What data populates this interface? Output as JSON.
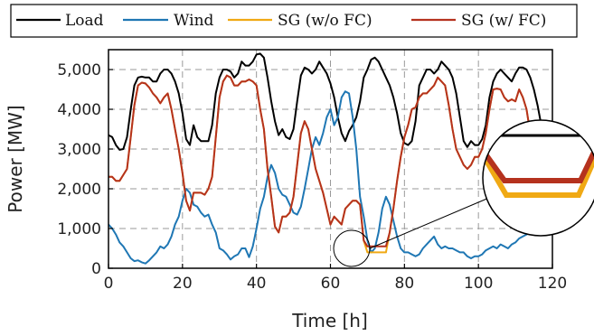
{
  "chart_data": {
    "type": "line",
    "xlabel": "Time [h]",
    "ylabel": "Power [MW]",
    "xlim": [
      0,
      120
    ],
    "ylim": [
      0,
      5500
    ],
    "xticks": [
      0,
      20,
      40,
      60,
      80,
      100,
      120
    ],
    "xtick_labels": [
      "0",
      "20",
      "40",
      "60",
      "80",
      "100",
      "120"
    ],
    "yticks": [
      0,
      1000,
      2000,
      3000,
      4000,
      5000
    ],
    "ytick_labels": [
      "0",
      "1,000",
      "2,000",
      "3,000",
      "4,000",
      "5,000"
    ],
    "grid": true,
    "legend_position": "top",
    "series": [
      {
        "name": "Load",
        "color": "#000000",
        "x": [
          0,
          1,
          2,
          3,
          4,
          5,
          6,
          7,
          8,
          9,
          10,
          11,
          12,
          13,
          14,
          15,
          16,
          17,
          18,
          19,
          20,
          21,
          22,
          23,
          24,
          25,
          26,
          27,
          28,
          29,
          30,
          31,
          32,
          33,
          34,
          35,
          36,
          37,
          38,
          39,
          40,
          41,
          42,
          43,
          44,
          45,
          46,
          47,
          48,
          49,
          50,
          51,
          52,
          53,
          54,
          55,
          56,
          57,
          58,
          59,
          60,
          61,
          62,
          63,
          64,
          65,
          66,
          67,
          68,
          69,
          70,
          71,
          72,
          73,
          74,
          75,
          76,
          77,
          78,
          79,
          80,
          81,
          82,
          83,
          84,
          85,
          86,
          87,
          88,
          89,
          90,
          91,
          92,
          93,
          94,
          95,
          96,
          97,
          98,
          99,
          100,
          101,
          102,
          103,
          104,
          105,
          106,
          107,
          108,
          109,
          110,
          111,
          112,
          113,
          114,
          115,
          116,
          117,
          118,
          119
        ],
        "values": [
          3350,
          3300,
          3100,
          2980,
          3000,
          3300,
          4000,
          4600,
          4800,
          4820,
          4800,
          4800,
          4700,
          4700,
          4900,
          5000,
          5000,
          4900,
          4700,
          4400,
          3900,
          3250,
          3100,
          3600,
          3300,
          3200,
          3200,
          3200,
          3600,
          4400,
          4800,
          5000,
          5000,
          4950,
          4800,
          4900,
          5200,
          5100,
          5100,
          5200,
          5380,
          5400,
          5300,
          4800,
          4200,
          3700,
          3350,
          3500,
          3300,
          3250,
          3500,
          4200,
          4850,
          5050,
          5000,
          4900,
          5000,
          5200,
          5050,
          4900,
          4650,
          4300,
          3800,
          3400,
          3200,
          3450,
          3600,
          3800,
          4200,
          4800,
          5000,
          5250,
          5300,
          5200,
          5000,
          4800,
          4600,
          4300,
          3900,
          3400,
          3150,
          3100,
          3200,
          3700,
          4600,
          4800,
          5000,
          5000,
          4900,
          5000,
          5200,
          5100,
          5000,
          4800,
          4400,
          3800,
          3200,
          3050,
          3200,
          3100,
          3100,
          3250,
          3600,
          4300,
          4700,
          4900,
          5000,
          4900,
          4800,
          4700,
          4900,
          5050,
          5050,
          5000,
          4800,
          4500,
          4100,
          3600,
          3200,
          3100
        ]
      },
      {
        "name": "Wind",
        "color": "#1f77b4",
        "x": [
          0,
          1,
          2,
          3,
          4,
          5,
          6,
          7,
          8,
          9,
          10,
          11,
          12,
          13,
          14,
          15,
          16,
          17,
          18,
          19,
          20,
          21,
          22,
          23,
          24,
          25,
          26,
          27,
          28,
          29,
          30,
          31,
          32,
          33,
          34,
          35,
          36,
          37,
          38,
          39,
          40,
          41,
          42,
          43,
          44,
          45,
          46,
          47,
          48,
          49,
          50,
          51,
          52,
          53,
          54,
          55,
          56,
          57,
          58,
          59,
          60,
          61,
          62,
          63,
          64,
          65,
          66,
          67,
          68,
          69,
          70,
          71,
          72,
          73,
          74,
          75,
          76,
          77,
          78,
          79,
          80,
          81,
          82,
          83,
          84,
          85,
          86,
          87,
          88,
          89,
          90,
          91,
          92,
          93,
          94,
          95,
          96,
          97,
          98,
          99,
          100,
          101,
          102,
          103,
          104,
          105,
          106,
          107,
          108,
          109,
          110,
          111,
          112,
          113,
          114,
          115,
          116,
          117,
          118,
          119
        ],
        "values": [
          1100,
          1000,
          850,
          650,
          550,
          400,
          250,
          180,
          200,
          150,
          120,
          200,
          300,
          400,
          550,
          500,
          600,
          800,
          1100,
          1300,
          1700,
          2000,
          1900,
          1600,
          1550,
          1400,
          1300,
          1350,
          1100,
          900,
          500,
          450,
          350,
          220,
          300,
          350,
          500,
          500,
          280,
          550,
          1000,
          1500,
          1800,
          2300,
          2600,
          2400,
          2000,
          1850,
          1800,
          1600,
          1400,
          1350,
          1550,
          2000,
          2500,
          3000,
          3300,
          3100,
          3400,
          3800,
          4000,
          3600,
          3800,
          4300,
          4450,
          4400,
          3800,
          3000,
          1800,
          1300,
          700,
          400,
          500,
          900,
          1500,
          1800,
          1600,
          1200,
          800,
          500,
          400,
          400,
          350,
          300,
          350,
          500,
          600,
          700,
          800,
          600,
          500,
          550,
          500,
          500,
          450,
          400,
          400,
          300,
          250,
          300,
          300,
          350,
          450,
          500,
          550,
          500,
          600,
          550,
          500,
          600,
          650,
          750,
          800,
          850,
          900,
          850,
          900,
          1000,
          1000,
          1000
        ]
      },
      {
        "name": "SG (w/o FC)",
        "color": "#f0a914",
        "x": [
          0,
          1,
          2,
          3,
          4,
          5,
          6,
          7,
          8,
          9,
          10,
          11,
          12,
          13,
          14,
          15,
          16,
          17,
          18,
          19,
          20,
          21,
          22,
          23,
          24,
          25,
          26,
          27,
          28,
          29,
          30,
          31,
          32,
          33,
          34,
          35,
          36,
          37,
          38,
          39,
          40,
          41,
          42,
          43,
          44,
          45,
          46,
          47,
          48,
          49,
          50,
          51,
          52,
          53,
          54,
          55,
          56,
          57,
          58,
          59,
          60,
          61,
          62,
          63,
          64,
          65,
          66,
          67,
          68,
          69,
          70,
          71,
          72,
          73,
          74,
          75,
          76,
          77,
          78,
          79,
          80,
          81,
          82,
          83,
          84,
          85,
          86,
          87,
          88,
          89,
          90,
          91,
          92,
          93,
          94,
          95,
          96,
          97,
          98,
          99,
          100,
          101,
          102,
          103,
          104,
          105,
          106,
          107,
          108,
          109,
          110,
          111,
          112,
          113,
          114,
          115,
          116,
          117,
          118,
          119
        ],
        "values": [
          2300,
          2300,
          2200,
          2200,
          2350,
          2500,
          3300,
          4100,
          4600,
          4670,
          4650,
          4550,
          4400,
          4300,
          4150,
          4300,
          4400,
          4000,
          3500,
          3000,
          2400,
          1700,
          1450,
          1900,
          1900,
          1900,
          1850,
          2000,
          2300,
          3300,
          4300,
          4700,
          4850,
          4800,
          4600,
          4600,
          4700,
          4700,
          4750,
          4700,
          4600,
          4000,
          3500,
          2500,
          1800,
          1050,
          900,
          1300,
          1300,
          1400,
          1800,
          2600,
          3400,
          3700,
          3500,
          3000,
          2500,
          2200,
          1900,
          1500,
          1100,
          1300,
          1200,
          1100,
          1500,
          1600,
          1700,
          1700,
          1600,
          700,
          400,
          400,
          400,
          400,
          400,
          400,
          900,
          1500,
          2200,
          2800,
          3300,
          3600,
          4000,
          4050,
          4300,
          4400,
          4400,
          4500,
          4600,
          4800,
          4700,
          4600,
          4100,
          3500,
          3000,
          2800,
          2600,
          2500,
          2600,
          2800,
          2800,
          3000,
          3400,
          4000,
          4500,
          4520,
          4500,
          4300,
          4200,
          4250,
          4200,
          4500,
          4300,
          4000,
          3400,
          3000,
          2800,
          2700,
          2600,
          2500
        ]
      },
      {
        "name": "SG (w/ FC)",
        "color": "#b5321e",
        "x": [
          0,
          1,
          2,
          3,
          4,
          5,
          6,
          7,
          8,
          9,
          10,
          11,
          12,
          13,
          14,
          15,
          16,
          17,
          18,
          19,
          20,
          21,
          22,
          23,
          24,
          25,
          26,
          27,
          28,
          29,
          30,
          31,
          32,
          33,
          34,
          35,
          36,
          37,
          38,
          39,
          40,
          41,
          42,
          43,
          44,
          45,
          46,
          47,
          48,
          49,
          50,
          51,
          52,
          53,
          54,
          55,
          56,
          57,
          58,
          59,
          60,
          61,
          62,
          63,
          64,
          65,
          66,
          67,
          68,
          69,
          70,
          71,
          72,
          73,
          74,
          75,
          76,
          77,
          78,
          79,
          80,
          81,
          82,
          83,
          84,
          85,
          86,
          87,
          88,
          89,
          90,
          91,
          92,
          93,
          94,
          95,
          96,
          97,
          98,
          99,
          100,
          101,
          102,
          103,
          104,
          105,
          106,
          107,
          108,
          109,
          110,
          111,
          112,
          113,
          114,
          115,
          116,
          117,
          118,
          119
        ],
        "values": [
          2300,
          2300,
          2200,
          2200,
          2350,
          2500,
          3300,
          4100,
          4600,
          4670,
          4650,
          4550,
          4400,
          4300,
          4150,
          4300,
          4400,
          4000,
          3500,
          3000,
          2400,
          1700,
          1450,
          1900,
          1900,
          1900,
          1850,
          2000,
          2300,
          3300,
          4300,
          4700,
          4850,
          4800,
          4600,
          4600,
          4700,
          4700,
          4750,
          4700,
          4600,
          4000,
          3500,
          2500,
          1800,
          1050,
          900,
          1300,
          1300,
          1400,
          1800,
          2600,
          3400,
          3700,
          3500,
          3000,
          2500,
          2200,
          1900,
          1500,
          1100,
          1300,
          1200,
          1100,
          1500,
          1600,
          1700,
          1700,
          1600,
          700,
          550,
          550,
          550,
          550,
          550,
          550,
          900,
          1500,
          2200,
          2800,
          3300,
          3600,
          4000,
          4050,
          4300,
          4400,
          4400,
          4500,
          4600,
          4800,
          4700,
          4600,
          4100,
          3500,
          3000,
          2800,
          2600,
          2500,
          2600,
          2800,
          2800,
          3000,
          3400,
          4000,
          4500,
          4520,
          4500,
          4300,
          4200,
          4250,
          4200,
          4500,
          4300,
          4000,
          3400,
          3000,
          2800,
          2700,
          2600,
          2500
        ]
      }
    ]
  }
}
